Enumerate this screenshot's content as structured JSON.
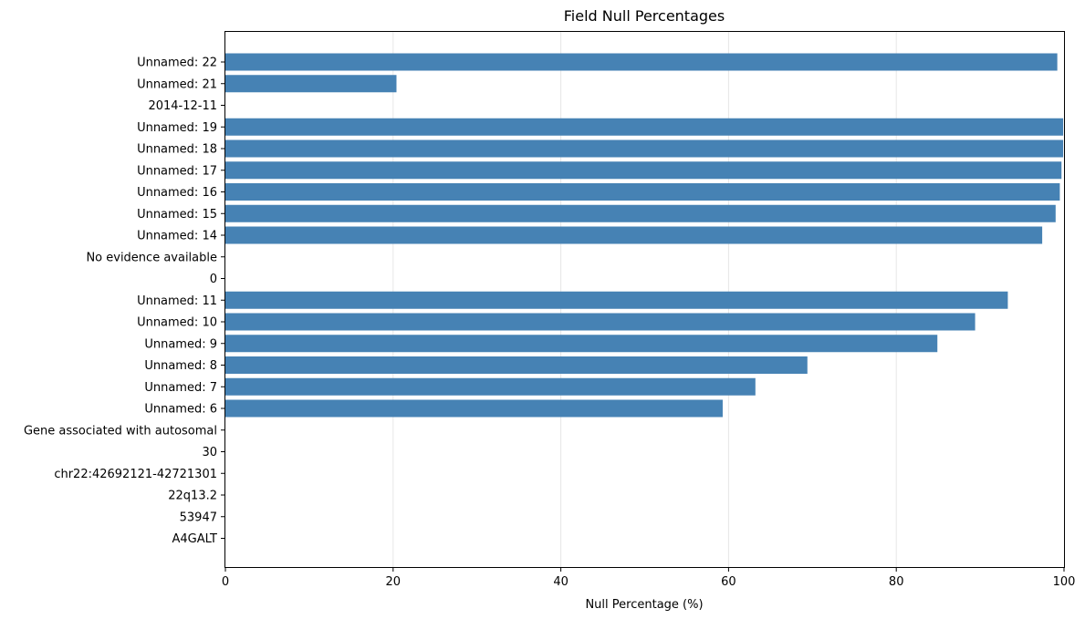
{
  "chart_data": {
    "type": "bar",
    "orientation": "horizontal",
    "title": "Field Null Percentages",
    "xlabel": "Null Percentage (%)",
    "ylabel": "",
    "xlim": [
      0,
      100
    ],
    "xticks": [
      0,
      20,
      40,
      60,
      80,
      100
    ],
    "grid": "x",
    "bar_color": "#4682b4",
    "categories": [
      "Unnamed: 22",
      "Unnamed: 21",
      "2014-12-11",
      "Unnamed: 19",
      "Unnamed: 18",
      "Unnamed: 17",
      "Unnamed: 16",
      "Unnamed: 15",
      "Unnamed: 14",
      "No evidence available",
      "0",
      "Unnamed: 11",
      "Unnamed: 10",
      "Unnamed: 9",
      "Unnamed: 8",
      "Unnamed: 7",
      "Unnamed: 6",
      "Gene associated with autosomal",
      "30",
      "chr22:42692121-42721301",
      "22q13.2",
      "53947",
      "A4GALT"
    ],
    "values": [
      99.2,
      20.4,
      0,
      99.9,
      99.9,
      99.7,
      99.5,
      99.0,
      97.4,
      0,
      0,
      93.3,
      89.4,
      84.9,
      69.4,
      63.2,
      59.3,
      0,
      0,
      0,
      0,
      0,
      0
    ]
  }
}
